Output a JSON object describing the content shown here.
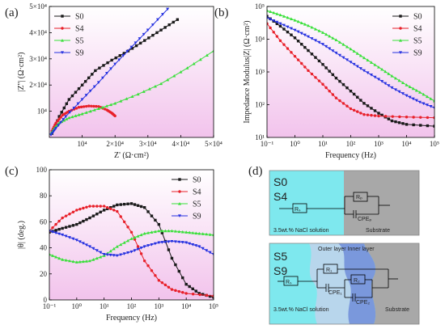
{
  "colors": {
    "S0": "#1a1a1a",
    "S4": "#e8202a",
    "S5": "#39e03a",
    "S9": "#2430e0",
    "plot_bg_top": "#ffffff",
    "plot_bg_bottom": "#f2c3ec",
    "solution": "#7ee8ee",
    "substrate": "#a8a8a8",
    "outer_layer": "#b8d6ec",
    "inner_layer": "#7a98dc"
  },
  "panels": {
    "a": "(a)",
    "b": "(b)",
    "c": "(c)",
    "d": "(d)"
  },
  "chart_data": [
    {
      "id": "a",
      "type": "line",
      "xlabel": "Z' (Ω·cm²)",
      "ylabel": "|Z''| (Ω·cm²)",
      "xlim": [
        0,
        50000
      ],
      "ylim": [
        0,
        50000
      ],
      "xticks": [
        "10⁴",
        "2×10⁴",
        "3×10⁴",
        "4×10⁴",
        "5×10⁴"
      ],
      "yticks": [
        "10⁴",
        "2×10⁴",
        "3×10⁴",
        "4×10⁴",
        "5×10⁴"
      ],
      "legend": "top-left",
      "series": [
        {
          "name": "S0",
          "x": [
            800,
            3000,
            6000,
            10000,
            14000,
            19000,
            24000,
            29000,
            34000,
            39000
          ],
          "y": [
            1500,
            8000,
            14500,
            20000,
            25500,
            29500,
            33000,
            37000,
            41000,
            45000
          ]
        },
        {
          "name": "S4",
          "x": [
            800,
            2000,
            4000,
            6000,
            9000,
            12000,
            15000,
            17500,
            19000,
            20000
          ],
          "y": [
            2500,
            5500,
            8500,
            10000,
            11500,
            12000,
            11800,
            10500,
            9300,
            8200
          ]
        },
        {
          "name": "S5",
          "x": [
            500,
            1500,
            3000,
            6000,
            10000,
            15000,
            20000,
            27000,
            34000,
            42000,
            50000
          ],
          "y": [
            1500,
            3500,
            5500,
            7500,
            9000,
            11000,
            13000,
            16500,
            20500,
            26500,
            33000
          ]
        },
        {
          "name": "S9",
          "x": [
            500,
            2000,
            5000,
            10000,
            15000,
            20000,
            25000,
            30000,
            36000
          ],
          "y": [
            1000,
            3500,
            8000,
            14500,
            21000,
            28000,
            34500,
            41000,
            49000
          ]
        }
      ]
    },
    {
      "id": "b",
      "type": "line",
      "xlabel": "Frequency (Hz)",
      "ylabel": "Impedance Modulus|Z| (Ω·cm²)",
      "xscale": "log",
      "yscale": "log",
      "xlim": [
        0.1,
        100000
      ],
      "ylim": [
        10,
        100000
      ],
      "xticks": [
        "10⁻¹",
        "10⁰",
        "10¹",
        "10²",
        "10³",
        "10⁴",
        "10⁵"
      ],
      "yticks": [
        "10¹",
        "10²",
        "10³",
        "10⁴",
        "10⁵"
      ],
      "legend": "top-right",
      "series": [
        {
          "name": "S0",
          "x": [
            0.1,
            0.3,
            1,
            3,
            10,
            30,
            100,
            300,
            1000,
            3000,
            10000,
            100000
          ],
          "y": [
            50000,
            25000,
            11000,
            4500,
            1700,
            650,
            260,
            110,
            55,
            32,
            25,
            22
          ]
        },
        {
          "name": "S4",
          "x": [
            0.1,
            0.3,
            1,
            3,
            10,
            30,
            100,
            300,
            1000,
            10000,
            100000
          ],
          "y": [
            30000,
            9000,
            3000,
            1100,
            420,
            160,
            75,
            50,
            45,
            42,
            40
          ]
        },
        {
          "name": "S5",
          "x": [
            0.1,
            0.3,
            1,
            3,
            10,
            30,
            100,
            300,
            1000,
            3000,
            10000,
            30000,
            100000
          ],
          "y": [
            75000,
            55000,
            38000,
            26000,
            16000,
            9500,
            5000,
            2700,
            1400,
            750,
            400,
            240,
            130
          ]
        },
        {
          "name": "S9",
          "x": [
            0.1,
            0.3,
            1,
            3,
            10,
            30,
            100,
            300,
            1000,
            3000,
            10000,
            30000,
            100000
          ],
          "y": [
            45000,
            30000,
            19000,
            12000,
            7000,
            3800,
            2000,
            1100,
            600,
            330,
            190,
            120,
            80
          ]
        }
      ]
    },
    {
      "id": "c",
      "type": "line",
      "xlabel": "Frequency (Hz)",
      "ylabel": "|θ| (deg.)",
      "xscale": "log",
      "xlim": [
        0.1,
        100000
      ],
      "ylim": [
        0,
        100
      ],
      "xticks": [
        "10⁻¹",
        "10⁰",
        "10¹",
        "10²",
        "10³",
        "10⁴",
        "10⁵"
      ],
      "yticks": [
        "0",
        "20",
        "40",
        "60",
        "80",
        "100"
      ],
      "legend": "top-right",
      "series": [
        {
          "name": "S0",
          "x": [
            0.1,
            0.3,
            1,
            3,
            10,
            30,
            100,
            300,
            1000,
            3000,
            10000,
            30000,
            100000
          ],
          "y": [
            52,
            55,
            58,
            63,
            69,
            73,
            74,
            71,
            58,
            32,
            12,
            5,
            2
          ]
        },
        {
          "name": "S4",
          "x": [
            0.1,
            0.3,
            1,
            3,
            10,
            30,
            100,
            300,
            1000,
            3000,
            10000,
            100000
          ],
          "y": [
            53,
            63,
            69,
            72,
            72,
            68,
            52,
            30,
            15,
            8,
            5,
            3
          ]
        },
        {
          "name": "S5",
          "x": [
            0.1,
            0.3,
            1,
            3,
            10,
            30,
            100,
            300,
            1000,
            3000,
            10000,
            30000,
            100000
          ],
          "y": [
            35,
            31,
            29,
            30,
            34,
            41,
            47,
            51,
            53,
            53,
            52,
            51,
            50
          ]
        },
        {
          "name": "S9",
          "x": [
            0.1,
            0.3,
            1,
            3,
            10,
            30,
            100,
            300,
            1000,
            3000,
            10000,
            30000,
            100000
          ],
          "y": [
            53,
            50,
            46,
            41,
            35,
            34,
            37,
            41,
            44,
            45,
            44,
            41,
            35
          ]
        }
      ]
    }
  ],
  "circuits": {
    "top": {
      "labels": [
        "S0",
        "S4"
      ],
      "solution": "3.5wt.% NaCl solution",
      "substrate": "Substrate",
      "rs": "Rₛ",
      "rp": "Rₚ",
      "cpe": "CPEₚ"
    },
    "bottom": {
      "labels": [
        "S5",
        "S9"
      ],
      "layer_caption": "Outer layer Inner layer",
      "solution": "3.5wt.% NaCl solution",
      "substrate": "Substrate",
      "rs": "Rₛ",
      "r1": "R₁",
      "r2": "R₂",
      "cpe1": "CPE₁",
      "cpe2": "CPE₂"
    }
  }
}
